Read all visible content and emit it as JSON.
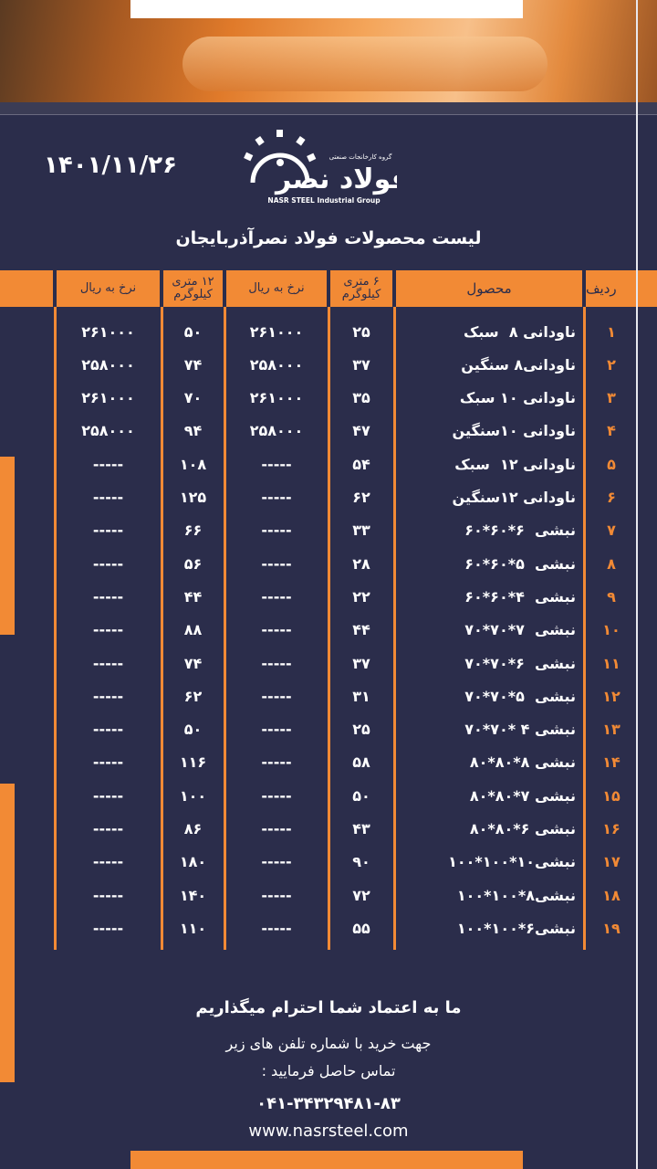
{
  "date": "۱۴۰۱/۱۱/۲۶",
  "logo": {
    "name": "فولاد نصر",
    "tagline": "گروه کارخانجات صنعتی",
    "region": "آذربایجان",
    "english": "NASR STEEL Industrial Group"
  },
  "title": "لیست محصولات فولاد نصرآذربایجان",
  "colors": {
    "background": "#2b2d4b",
    "accent": "#f28a35"
  },
  "table": {
    "headers": {
      "row": "ردیف",
      "product": "محصول",
      "kg6": "۶ متری\nکیلوگرم",
      "price6": "نرخ به ریال",
      "kg12": "۱۲ متری\nکیلوگرم",
      "price12": "نرخ به ریال"
    },
    "rows": [
      {
        "row": "۱",
        "product": "ناودانی ۸  سبک",
        "kg6": "۲۵",
        "price6": "۲۶۱۰۰۰",
        "kg12": "۵۰",
        "price12": "۲۶۱۰۰۰"
      },
      {
        "row": "۲",
        "product": "ناودانی۸ سنگین",
        "kg6": "۳۷",
        "price6": "۲۵۸۰۰۰",
        "kg12": "۷۴",
        "price12": "۲۵۸۰۰۰"
      },
      {
        "row": "۳",
        "product": "ناودانی ۱۰ سبک",
        "kg6": "۳۵",
        "price6": "۲۶۱۰۰۰",
        "kg12": "۷۰",
        "price12": "۲۶۱۰۰۰"
      },
      {
        "row": "۴",
        "product": "ناودانی ۱۰سنگین",
        "kg6": "۴۷",
        "price6": "۲۵۸۰۰۰",
        "kg12": "۹۴",
        "price12": "۲۵۸۰۰۰"
      },
      {
        "row": "۵",
        "product": "ناودانی ۱۲  سبک",
        "kg6": "۵۴",
        "price6": "-----",
        "kg12": "۱۰۸",
        "price12": "-----"
      },
      {
        "row": "۶",
        "product": "ناودانی ۱۲سنگین",
        "kg6": "۶۲",
        "price6": "-----",
        "kg12": "۱۲۵",
        "price12": "-----"
      },
      {
        "row": "۷",
        "product": "نبشی  ۶*۶۰*۶۰",
        "kg6": "۳۳",
        "price6": "-----",
        "kg12": "۶۶",
        "price12": "-----"
      },
      {
        "row": "۸",
        "product": "نبشی  ۵*۶۰*۶۰",
        "kg6": "۲۸",
        "price6": "-----",
        "kg12": "۵۶",
        "price12": "-----"
      },
      {
        "row": "۹",
        "product": "نبشی  ۴*۶۰*۶۰",
        "kg6": "۲۲",
        "price6": "-----",
        "kg12": "۴۴",
        "price12": "-----"
      },
      {
        "row": "۱۰",
        "product": "نبشی  ۷*۷۰*۷۰",
        "kg6": "۴۴",
        "price6": "-----",
        "kg12": "۸۸",
        "price12": "-----"
      },
      {
        "row": "۱۱",
        "product": "نبشی  ۶*۷۰*۷۰",
        "kg6": "۳۷",
        "price6": "-----",
        "kg12": "۷۴",
        "price12": "-----"
      },
      {
        "row": "۱۲",
        "product": "نبشی  ۵*۷۰*۷۰",
        "kg6": "۳۱",
        "price6": "-----",
        "kg12": "۶۲",
        "price12": "-----"
      },
      {
        "row": "۱۳",
        "product": "نبشی ۴ *۷۰*۷۰",
        "kg6": "۲۵",
        "price6": "-----",
        "kg12": "۵۰",
        "price12": "-----"
      },
      {
        "row": "۱۴",
        "product": "نبشی ۸*۸۰*۸۰",
        "kg6": "۵۸",
        "price6": "-----",
        "kg12": "۱۱۶",
        "price12": "-----"
      },
      {
        "row": "۱۵",
        "product": "نبشی ۷*۸۰*۸۰",
        "kg6": "۵۰",
        "price6": "-----",
        "kg12": "۱۰۰",
        "price12": "-----"
      },
      {
        "row": "۱۶",
        "product": "نبشی ۶*۸۰*۸۰",
        "kg6": "۴۳",
        "price6": "-----",
        "kg12": "۸۶",
        "price12": "-----"
      },
      {
        "row": "۱۷",
        "product": "نبشی۱۰*۱۰۰*۱۰۰",
        "kg6": "۹۰",
        "price6": "-----",
        "kg12": "۱۸۰",
        "price12": "-----"
      },
      {
        "row": "۱۸",
        "product": "نبشی۸*۱۰۰*۱۰۰",
        "kg6": "۷۲",
        "price6": "-----",
        "kg12": "۱۴۰",
        "price12": "-----"
      },
      {
        "row": "۱۹",
        "product": "نبشی۶*۱۰۰*۱۰۰",
        "kg6": "۵۵",
        "price6": "-----",
        "kg12": "۱۱۰",
        "price12": "-----"
      }
    ]
  },
  "footer": {
    "slogan": "ما به اعتماد شما احترام میگذاریم",
    "line1": "جهت خرید با شماره تلفن های زیر",
    "line2": "تماس حاصل فرمایید :",
    "phone": "۰۴۱-۳۴۳۲۹۴۸۱-۸۳",
    "website": "www.nasrsteel.com"
  }
}
